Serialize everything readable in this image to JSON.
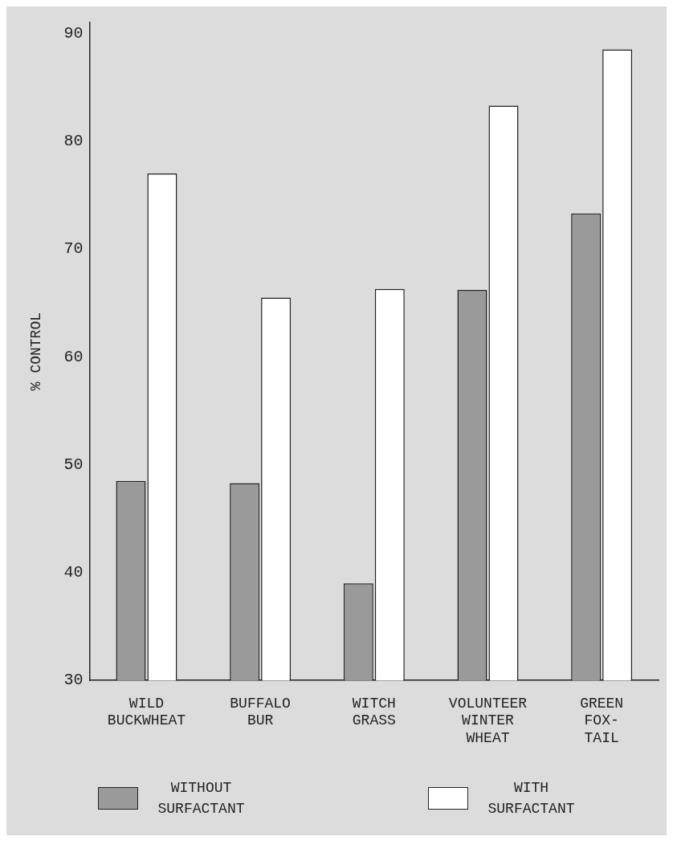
{
  "chart_data": {
    "type": "bar",
    "ylabel": "% CONTROL",
    "categories": [
      "WILD BUCKWHEAT",
      "BUFFALO BUR",
      "WITCH GRASS",
      "VOLUNTEER WINTER WHEAT",
      "GREEN FOX-TAIL"
    ],
    "series": [
      {
        "name": "WITHOUT SURFACTANT",
        "color": "#9a9a9a",
        "values": [
          48.5,
          48.3,
          39,
          66.2,
          73.3
        ]
      },
      {
        "name": "WITH SURFACTANT",
        "color": "#ffffff",
        "values": [
          77,
          65.5,
          66.3,
          83.3,
          88.5
        ]
      }
    ],
    "ylim": [
      30,
      91
    ],
    "yticks": [
      30,
      40,
      50,
      60,
      70,
      80,
      90
    ],
    "grid": false,
    "legend": "bottom"
  }
}
